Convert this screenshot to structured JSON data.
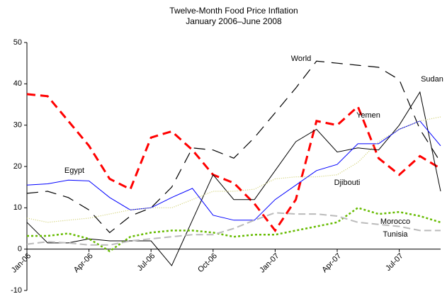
{
  "chart_data": {
    "type": "line",
    "title": "Twelve-Month Food Price Inflation",
    "subtitle": "January 2006–June 2008",
    "categories": [
      "Jan-06",
      null,
      null,
      "Apr-06",
      null,
      null,
      "Jul-06",
      null,
      null,
      "Oct-06",
      null,
      null,
      "Jan-07",
      null,
      null,
      "Apr-07",
      null,
      null,
      "Jul-07",
      null,
      null
    ],
    "ylim": [
      -10,
      50
    ],
    "yticks": [
      -10,
      0,
      10,
      20,
      30,
      40,
      50
    ],
    "grid": false,
    "series": [
      {
        "name": "World",
        "color": "#000000",
        "values": [
          13.5,
          14,
          12.5,
          9.5,
          4,
          8,
          10,
          15,
          24.5,
          24,
          22,
          27,
          33,
          39,
          45.5,
          45,
          44.5,
          44,
          41,
          29,
          21
        ]
      },
      {
        "name": "Yemen",
        "color": "#ff0000",
        "values": [
          37.5,
          37,
          31,
          25,
          17,
          14.5,
          27,
          28.5,
          24,
          18,
          16,
          11,
          4.5,
          12,
          31,
          30,
          34.5,
          22,
          18,
          22.5,
          19.5
        ]
      },
      {
        "name": "Sudan",
        "color": "#000000",
        "values": [
          6.5,
          1.5,
          1.5,
          2.5,
          2,
          2,
          2,
          -4,
          7,
          18,
          12,
          12,
          19,
          26,
          29,
          23.5,
          24.5,
          24,
          30,
          38,
          14
        ]
      },
      {
        "name": "Egypt",
        "color": "#0000ff",
        "values": [
          15.5,
          15.8,
          16.7,
          16.5,
          12.5,
          9.5,
          10,
          12.5,
          14.7,
          8.2,
          7,
          7,
          12,
          15.5,
          19,
          20.5,
          25.5,
          25.5,
          29,
          31,
          25
        ]
      },
      {
        "name": "Djibouti",
        "color": "#cccc66",
        "values": [
          7.5,
          6.5,
          7,
          7.5,
          8.5,
          9.5,
          10,
          10,
          12,
          14,
          14,
          14.5,
          17,
          17.5,
          17.5,
          18,
          21,
          26,
          29,
          31,
          32
        ]
      },
      {
        "name": "Morocco",
        "color": "#66bb00",
        "values": [
          3.2,
          3.2,
          3.8,
          2.5,
          -0.5,
          3,
          4,
          4.5,
          4.5,
          4,
          3,
          3.5,
          3.5,
          4.5,
          5.5,
          6.5,
          10,
          8.5,
          9,
          8,
          6.5
        ]
      },
      {
        "name": "Tunisia",
        "color": "#bbbbbb",
        "values": [
          1.2,
          1.8,
          1.5,
          1,
          1,
          2,
          2.5,
          3,
          3.5,
          3.5,
          5,
          7,
          8.8,
          8.5,
          8.5,
          8,
          6.5,
          6,
          5.5,
          4.5,
          4.5
        ]
      }
    ]
  }
}
